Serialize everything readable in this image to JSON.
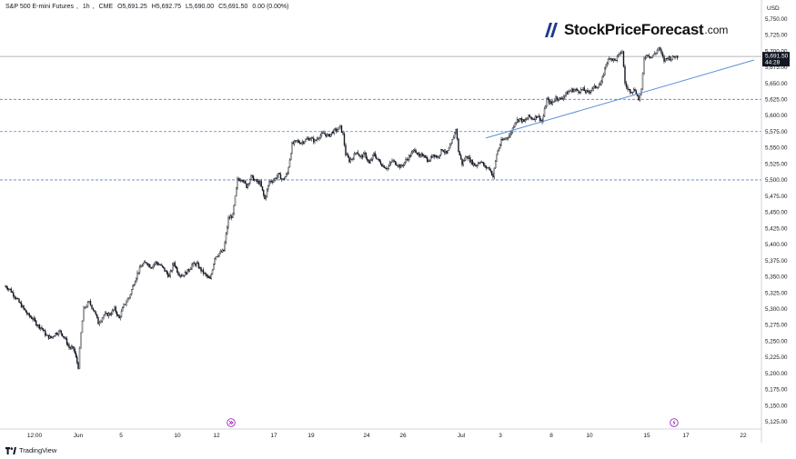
{
  "header": {
    "symbol": "S&P 500 E-mini Futures",
    "interval": "1h",
    "exchange": "CME",
    "open": "O5,691.25",
    "high": "H5,692.75",
    "low": "L5,690.00",
    "close": "C5,691.50",
    "change": "0.00 (0.00%)"
  },
  "logo": {
    "name": "StockPriceForecast",
    "domain": ".com"
  },
  "currency": "USD",
  "footer": {
    "brand": "TradingView"
  },
  "price_label": {
    "price": "5,691.50",
    "countdown": "44:28"
  },
  "icons": [
    "goto-realtime-icon",
    "lightning-event-icon"
  ],
  "colors": {
    "candle": "#131722",
    "trendline": "#5b8fd9",
    "support": "#5b7fc7",
    "price_label_bg": "#131722",
    "price_line": "#9e9e9e"
  },
  "chart_data": {
    "type": "candlestick",
    "title": "S&P 500 E-mini Futures, 1h, CME",
    "ylim": [
      5115,
      5765
    ],
    "y_ticks": [
      5125,
      5150,
      5175,
      5200,
      5225,
      5250,
      5275,
      5300,
      5325,
      5350,
      5375,
      5400,
      5425,
      5450,
      5475,
      5500,
      5525,
      5550,
      5575,
      5600,
      5625,
      5650,
      5675,
      5700,
      5725,
      5750
    ],
    "y_tick_labels": [
      "5,125.00",
      "5,150.00",
      "5,175.00",
      "5,200.00",
      "5,225.00",
      "5,250.00",
      "5,275.00",
      "5,300.00",
      "5,325.00",
      "5,350.00",
      "5,375.00",
      "5,400.00",
      "5,425.00",
      "5,450.00",
      "5,475.00",
      "5,500.00",
      "5,525.00",
      "5,550.00",
      "5,575.00",
      "5,600.00",
      "5,625.00",
      "5,650.00",
      "5,675.00",
      "5,700.00",
      "5,725.00",
      "5,750.00"
    ],
    "x_ticks": [
      "12:00",
      "Jun",
      "5",
      "10",
      "12",
      "17",
      "19",
      "24",
      "26",
      "Jul",
      "3",
      "8",
      "10",
      "15",
      "17",
      "22"
    ],
    "series": [
      {
        "name": "price",
        "points": [
          [
            0,
            5335
          ],
          [
            5,
            5330
          ],
          [
            10,
            5320
          ],
          [
            15,
            5310
          ],
          [
            20,
            5300
          ],
          [
            25,
            5290
          ],
          [
            30,
            5285
          ],
          [
            35,
            5275
          ],
          [
            40,
            5270
          ],
          [
            45,
            5258
          ],
          [
            50,
            5255
          ],
          [
            55,
            5262
          ],
          [
            60,
            5265
          ],
          [
            65,
            5255
          ],
          [
            70,
            5240
          ],
          [
            75,
            5238
          ],
          [
            80,
            5210
          ],
          [
            83,
            5262
          ],
          [
            86,
            5300
          ],
          [
            92,
            5310
          ],
          [
            98,
            5296
          ],
          [
            102,
            5278
          ],
          [
            108,
            5290
          ],
          [
            115,
            5292
          ],
          [
            120,
            5300
          ],
          [
            125,
            5285
          ],
          [
            130,
            5305
          ],
          [
            136,
            5318
          ],
          [
            140,
            5335
          ],
          [
            145,
            5355
          ],
          [
            150,
            5368
          ],
          [
            155,
            5372
          ],
          [
            160,
            5365
          ],
          [
            165,
            5372
          ],
          [
            170,
            5368
          ],
          [
            175,
            5360
          ],
          [
            180,
            5350
          ],
          [
            185,
            5372
          ],
          [
            190,
            5355
          ],
          [
            195,
            5352
          ],
          [
            200,
            5358
          ],
          [
            205,
            5368
          ],
          [
            210,
            5370
          ],
          [
            215,
            5360
          ],
          [
            220,
            5352
          ],
          [
            225,
            5345
          ],
          [
            230,
            5380
          ],
          [
            235,
            5386
          ],
          [
            240,
            5390
          ],
          [
            245,
            5440
          ],
          [
            250,
            5445
          ],
          [
            255,
            5500
          ],
          [
            260,
            5502
          ],
          [
            265,
            5490
          ],
          [
            270,
            5505
          ],
          [
            275,
            5498
          ],
          [
            280,
            5495
          ],
          [
            285,
            5470
          ],
          [
            290,
            5497
          ],
          [
            295,
            5500
          ],
          [
            300,
            5508
          ],
          [
            305,
            5500
          ],
          [
            310,
            5510
          ],
          [
            315,
            5555
          ],
          [
            320,
            5560
          ],
          [
            325,
            5558
          ],
          [
            330,
            5562
          ],
          [
            335,
            5565
          ],
          [
            340,
            5560
          ],
          [
            345,
            5568
          ],
          [
            350,
            5572
          ],
          [
            355,
            5568
          ],
          [
            360,
            5575
          ],
          [
            365,
            5578
          ],
          [
            368,
            5582
          ],
          [
            371,
            5570
          ],
          [
            374,
            5540
          ],
          [
            378,
            5530
          ],
          [
            382,
            5535
          ],
          [
            386,
            5545
          ],
          [
            390,
            5535
          ],
          [
            395,
            5540
          ],
          [
            400,
            5525
          ],
          [
            405,
            5540
          ],
          [
            410,
            5530
          ],
          [
            415,
            5522
          ],
          [
            420,
            5518
          ],
          [
            425,
            5530
          ],
          [
            430,
            5525
          ],
          [
            435,
            5520
          ],
          [
            440,
            5530
          ],
          [
            445,
            5538
          ],
          [
            450,
            5548
          ],
          [
            455,
            5535
          ],
          [
            460,
            5540
          ],
          [
            465,
            5528
          ],
          [
            470,
            5540
          ],
          [
            475,
            5535
          ],
          [
            480,
            5548
          ],
          [
            485,
            5540
          ],
          [
            490,
            5555
          ],
          [
            495,
            5580
          ],
          [
            498,
            5545
          ],
          [
            502,
            5525
          ],
          [
            507,
            5538
          ],
          [
            512,
            5528
          ],
          [
            517,
            5522
          ],
          [
            522,
            5530
          ],
          [
            527,
            5520
          ],
          [
            532,
            5518
          ],
          [
            536,
            5505
          ],
          [
            540,
            5540
          ],
          [
            545,
            5560
          ],
          [
            550,
            5565
          ],
          [
            555,
            5570
          ],
          [
            560,
            5590
          ],
          [
            565,
            5595
          ],
          [
            570,
            5590
          ],
          [
            575,
            5598
          ],
          [
            580,
            5595
          ],
          [
            585,
            5600
          ],
          [
            590,
            5590
          ],
          [
            595,
            5625
          ],
          [
            600,
            5618
          ],
          [
            605,
            5628
          ],
          [
            610,
            5625
          ],
          [
            615,
            5632
          ],
          [
            620,
            5638
          ],
          [
            625,
            5640
          ],
          [
            630,
            5638
          ],
          [
            635,
            5640
          ],
          [
            640,
            5635
          ],
          [
            645,
            5642
          ],
          [
            650,
            5645
          ],
          [
            655,
            5650
          ],
          [
            660,
            5680
          ],
          [
            665,
            5690
          ],
          [
            670,
            5685
          ],
          [
            675,
            5695
          ],
          [
            678,
            5700
          ],
          [
            681,
            5650
          ],
          [
            684,
            5640
          ],
          [
            688,
            5638
          ],
          [
            692,
            5640
          ],
          [
            696,
            5625
          ],
          [
            699,
            5638
          ],
          [
            702,
            5690
          ],
          [
            706,
            5695
          ],
          [
            710,
            5690
          ],
          [
            715,
            5698
          ],
          [
            718,
            5705
          ],
          [
            721,
            5695
          ],
          [
            724,
            5685
          ],
          [
            728,
            5690
          ],
          [
            732,
            5688
          ],
          [
            736,
            5692
          ],
          [
            740,
            5691
          ]
        ]
      }
    ],
    "support_levels": [
      5625,
      5575,
      5500
    ],
    "current_price": 5691.5,
    "trendline": {
      "from": [
        528,
        5565
      ],
      "to": [
        823,
        5686
      ]
    }
  }
}
